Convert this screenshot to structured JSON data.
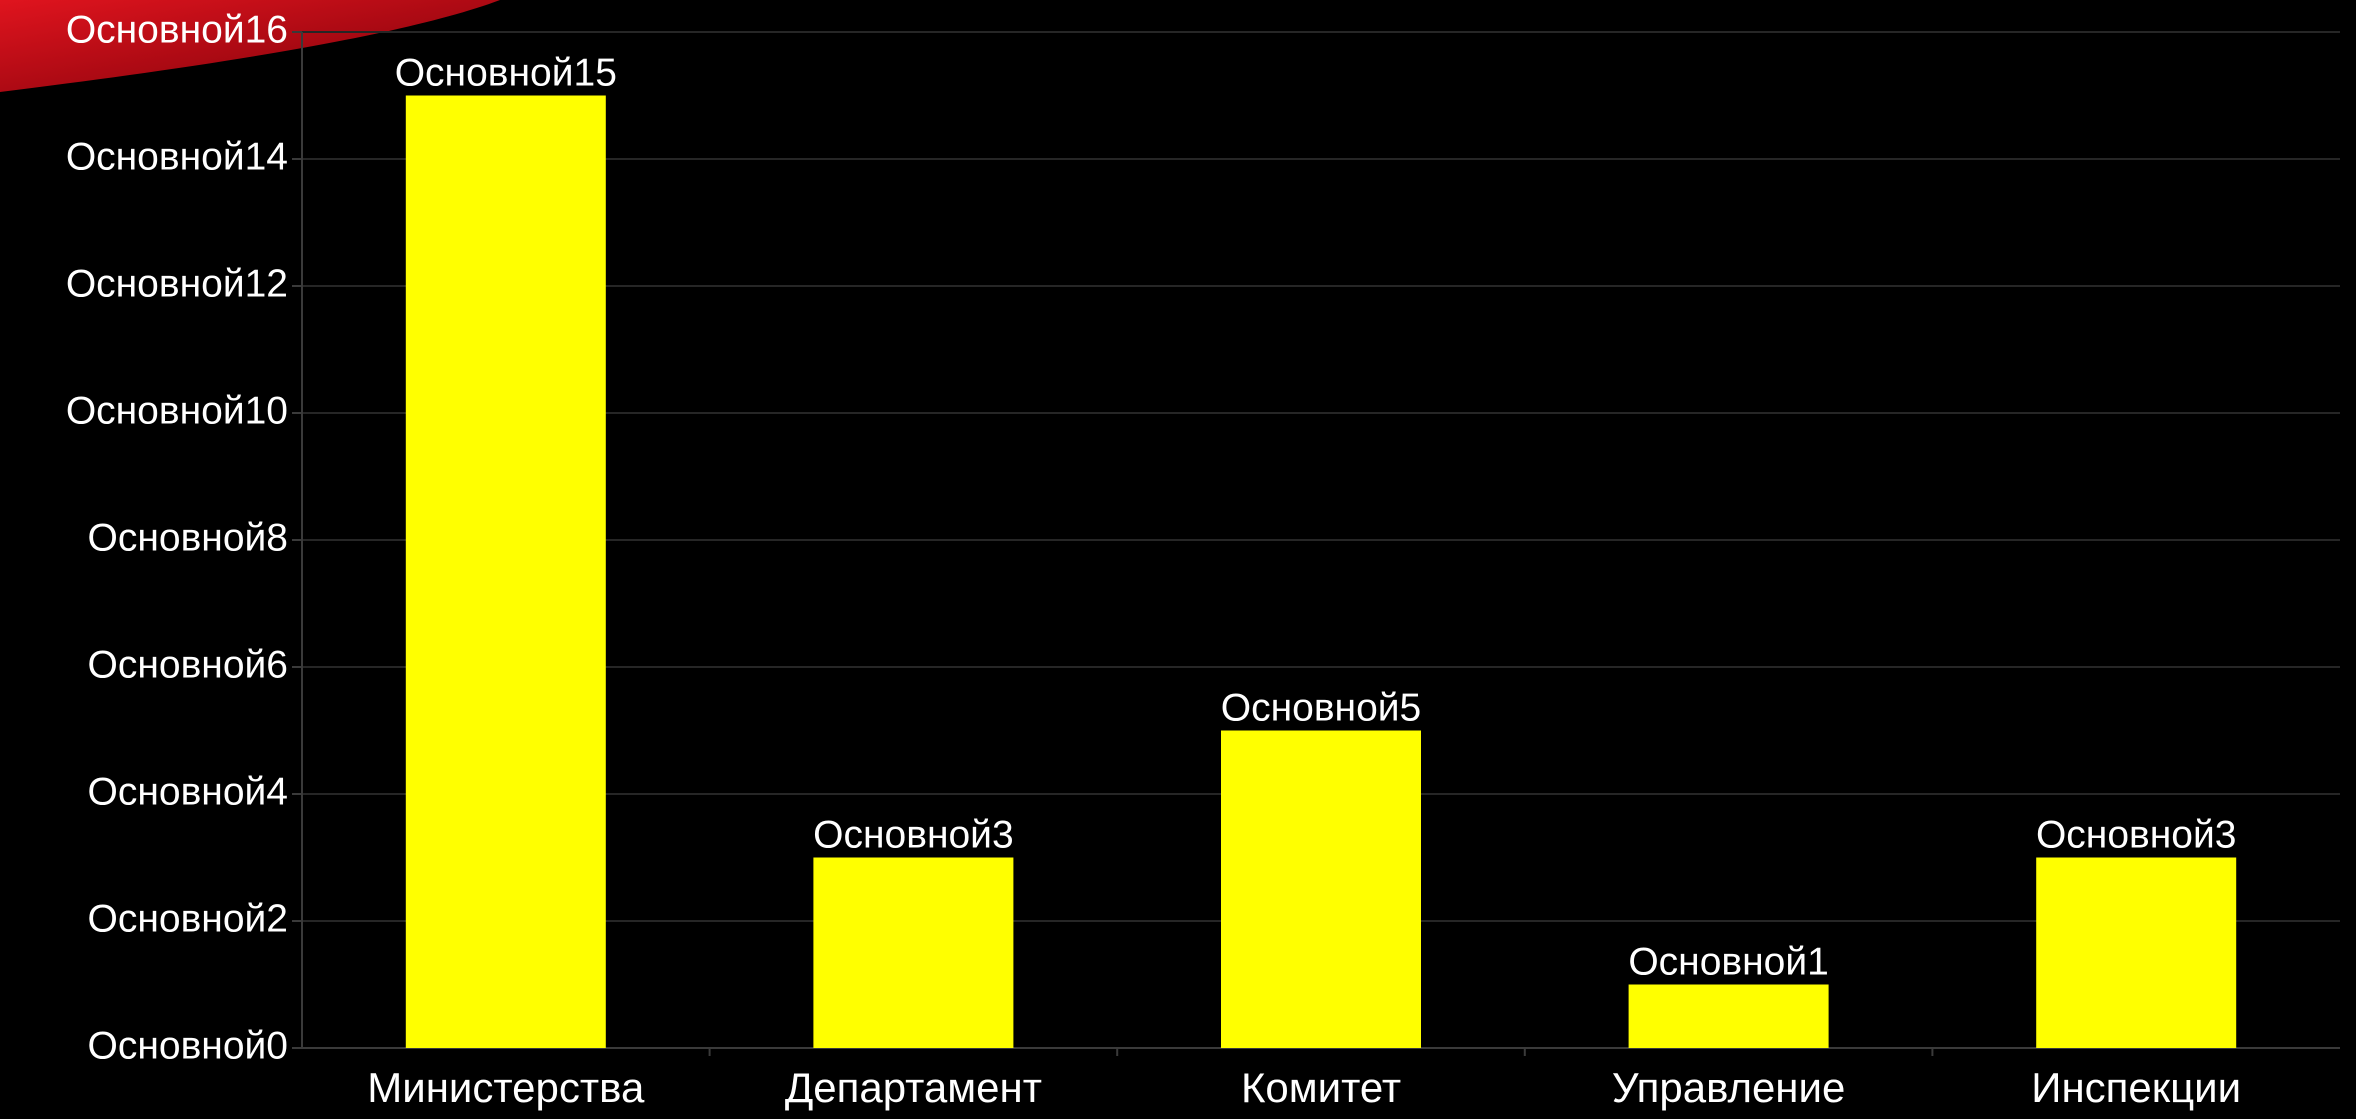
{
  "chart_data": {
    "type": "bar",
    "categories": [
      "Министерства",
      "Департамент",
      "Комитет",
      "Управление",
      "Инспекции"
    ],
    "values": [
      15,
      3,
      5,
      1,
      3
    ],
    "data_labels": [
      "Основной15",
      "Основной3",
      "Основной5",
      "Основной1",
      "Основной3"
    ],
    "ylim": [
      0,
      16
    ],
    "y_ticks": [
      0,
      2,
      4,
      6,
      8,
      10,
      12,
      14,
      16
    ],
    "y_tick_labels": [
      "Основной0",
      "Основной2",
      "Основной4",
      "Основной6",
      "Основной8",
      "Основной10",
      "Основной12",
      "Основной14",
      "Основной16"
    ],
    "grid": true,
    "colors": {
      "background": "#000000",
      "bar": "#ffff00",
      "grid": "#262626",
      "axis": "#3a3a3a",
      "text": "#ffffff",
      "corner_accent": "#c8101a"
    }
  }
}
